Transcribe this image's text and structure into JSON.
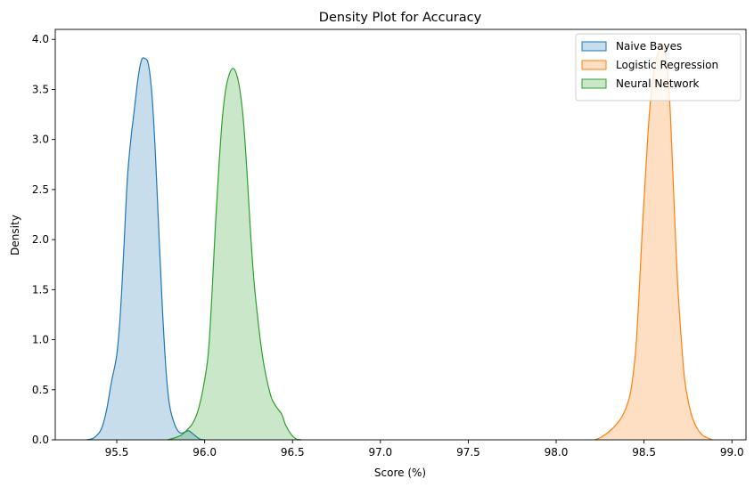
{
  "chart_data": {
    "type": "area",
    "title": "Density Plot for Accuracy",
    "xlabel": "Score (%)",
    "ylabel": "Density",
    "xlim": [
      95.15,
      99.08
    ],
    "ylim": [
      0,
      4.1
    ],
    "x_ticks": [
      95.5,
      96.0,
      96.5,
      97.0,
      97.5,
      98.0,
      98.5,
      99.0
    ],
    "x_tick_labels": [
      "95.5",
      "96.0",
      "96.5",
      "97.0",
      "97.5",
      "98.0",
      "98.5",
      "99.0"
    ],
    "y_ticks": [
      0,
      0.5,
      1.0,
      1.5,
      2.0,
      2.5,
      3.0,
      3.5,
      4.0
    ],
    "y_tick_labels": [
      "0.0",
      "0.5",
      "1.0",
      "1.5",
      "2.0",
      "2.5",
      "3.0",
      "3.5",
      "4.0"
    ],
    "grid": false,
    "legend_position": "top-right",
    "series": [
      {
        "name": "Naive Bayes",
        "color": "#1f77b4",
        "points": [
          [
            95.33,
            0.0
          ],
          [
            95.37,
            0.02
          ],
          [
            95.41,
            0.1
          ],
          [
            95.44,
            0.28
          ],
          [
            95.47,
            0.58
          ],
          [
            95.5,
            0.85
          ],
          [
            95.52,
            1.25
          ],
          [
            95.54,
            1.9
          ],
          [
            95.56,
            2.6
          ],
          [
            95.58,
            3.0
          ],
          [
            95.6,
            3.3
          ],
          [
            95.62,
            3.6
          ],
          [
            95.64,
            3.79
          ],
          [
            95.66,
            3.81
          ],
          [
            95.68,
            3.75
          ],
          [
            95.7,
            3.45
          ],
          [
            95.72,
            2.85
          ],
          [
            95.74,
            2.05
          ],
          [
            95.76,
            1.3
          ],
          [
            95.78,
            0.7
          ],
          [
            95.8,
            0.35
          ],
          [
            95.83,
            0.15
          ],
          [
            95.86,
            0.07
          ],
          [
            95.89,
            0.08
          ],
          [
            95.91,
            0.09
          ],
          [
            95.94,
            0.05
          ],
          [
            95.97,
            0.01
          ],
          [
            96.0,
            0.0
          ]
        ]
      },
      {
        "name": "Logistic Regression",
        "color": "#ff7f0e",
        "points": [
          [
            98.22,
            0.0
          ],
          [
            98.26,
            0.03
          ],
          [
            98.3,
            0.08
          ],
          [
            98.34,
            0.15
          ],
          [
            98.38,
            0.25
          ],
          [
            98.42,
            0.45
          ],
          [
            98.45,
            0.85
          ],
          [
            98.47,
            1.4
          ],
          [
            98.49,
            2.1
          ],
          [
            98.51,
            2.7
          ],
          [
            98.53,
            3.25
          ],
          [
            98.55,
            3.6
          ],
          [
            98.57,
            3.8
          ],
          [
            98.59,
            3.9
          ],
          [
            98.61,
            3.92
          ],
          [
            98.63,
            3.75
          ],
          [
            98.65,
            3.25
          ],
          [
            98.67,
            2.4
          ],
          [
            98.69,
            1.6
          ],
          [
            98.71,
            1.05
          ],
          [
            98.73,
            0.62
          ],
          [
            98.75,
            0.4
          ],
          [
            98.77,
            0.25
          ],
          [
            98.8,
            0.12
          ],
          [
            98.83,
            0.05
          ],
          [
            98.86,
            0.02
          ],
          [
            98.89,
            0.0
          ]
        ]
      },
      {
        "name": "Neural Network",
        "color": "#2ca02c",
        "points": [
          [
            95.79,
            0.0
          ],
          [
            95.83,
            0.02
          ],
          [
            95.87,
            0.05
          ],
          [
            95.9,
            0.1
          ],
          [
            95.93,
            0.16
          ],
          [
            95.96,
            0.28
          ],
          [
            95.99,
            0.5
          ],
          [
            96.02,
            0.85
          ],
          [
            96.04,
            1.4
          ],
          [
            96.06,
            2.1
          ],
          [
            96.08,
            2.7
          ],
          [
            96.1,
            3.2
          ],
          [
            96.12,
            3.5
          ],
          [
            96.14,
            3.65
          ],
          [
            96.16,
            3.71
          ],
          [
            96.18,
            3.66
          ],
          [
            96.2,
            3.5
          ],
          [
            96.22,
            3.2
          ],
          [
            96.24,
            2.7
          ],
          [
            96.26,
            2.1
          ],
          [
            96.28,
            1.6
          ],
          [
            96.3,
            1.25
          ],
          [
            96.32,
            0.95
          ],
          [
            96.34,
            0.72
          ],
          [
            96.36,
            0.55
          ],
          [
            96.38,
            0.42
          ],
          [
            96.4,
            0.35
          ],
          [
            96.42,
            0.3
          ],
          [
            96.44,
            0.25
          ],
          [
            96.46,
            0.15
          ],
          [
            96.49,
            0.06
          ],
          [
            96.52,
            0.01
          ],
          [
            96.55,
            0.0
          ]
        ]
      }
    ]
  }
}
